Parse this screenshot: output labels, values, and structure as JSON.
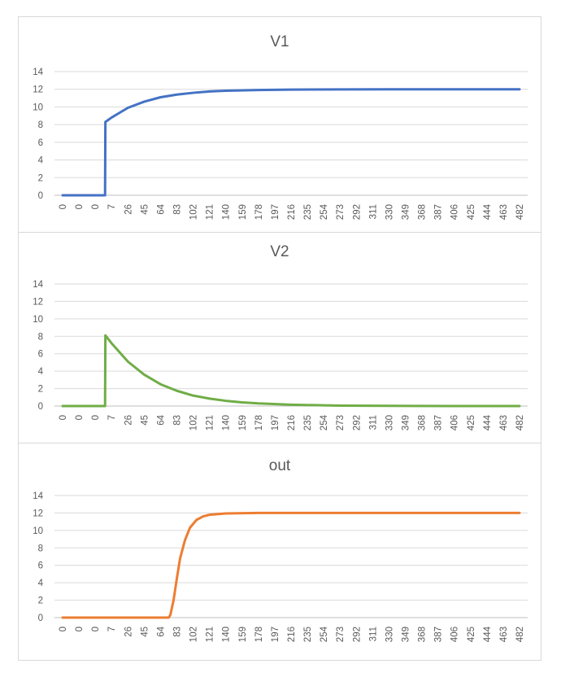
{
  "chart_data": [
    {
      "type": "line",
      "title": "V1",
      "xlabel": "",
      "ylabel": "",
      "ylim": [
        0,
        14
      ],
      "yticks": [
        "0",
        "2",
        "4",
        "6",
        "8",
        "10",
        "12",
        "14"
      ],
      "categories": [
        "0",
        "0",
        "0",
        "7",
        "26",
        "45",
        "64",
        "83",
        "102",
        "121",
        "140",
        "159",
        "178",
        "197",
        "216",
        "235",
        "254",
        "273",
        "292",
        "311",
        "330",
        "349",
        "368",
        "387",
        "406",
        "425",
        "444",
        "463",
        "482"
      ],
      "series": [
        {
          "color": "#4472c4",
          "x": [
            0,
            1,
            2,
            2.6,
            2.62,
            3,
            4,
            5,
            6,
            7,
            8,
            9,
            10,
            12,
            14,
            17,
            20,
            24,
            28
          ],
          "values": [
            0,
            0,
            0,
            0,
            8.3,
            8.8,
            9.9,
            10.6,
            11.1,
            11.4,
            11.6,
            11.75,
            11.83,
            11.92,
            11.96,
            11.99,
            12,
            12,
            12
          ]
        }
      ]
    },
    {
      "type": "line",
      "title": "V2",
      "xlabel": "",
      "ylabel": "",
      "ylim": [
        0,
        14
      ],
      "yticks": [
        "0",
        "2",
        "4",
        "6",
        "8",
        "10",
        "12",
        "14"
      ],
      "categories": [
        "0",
        "0",
        "0",
        "7",
        "26",
        "45",
        "64",
        "83",
        "102",
        "121",
        "140",
        "159",
        "178",
        "197",
        "216",
        "235",
        "254",
        "273",
        "292",
        "311",
        "330",
        "349",
        "368",
        "387",
        "406",
        "425",
        "444",
        "463",
        "482"
      ],
      "series": [
        {
          "color": "#70ad47",
          "x": [
            0,
            1,
            2,
            2.6,
            2.62,
            3,
            4,
            5,
            6,
            7,
            8,
            9,
            10,
            11,
            12,
            14,
            17,
            20,
            24,
            28
          ],
          "values": [
            0,
            0,
            0,
            0,
            8.1,
            7.2,
            5.1,
            3.6,
            2.5,
            1.75,
            1.2,
            0.85,
            0.6,
            0.42,
            0.3,
            0.15,
            0.05,
            0.02,
            0,
            0
          ]
        }
      ]
    },
    {
      "type": "line",
      "title": "out",
      "xlabel": "",
      "ylabel": "",
      "ylim": [
        0,
        14
      ],
      "yticks": [
        "0",
        "2",
        "4",
        "6",
        "8",
        "10",
        "12",
        "14"
      ],
      "categories": [
        "0",
        "0",
        "0",
        "7",
        "26",
        "45",
        "64",
        "83",
        "102",
        "121",
        "140",
        "159",
        "178",
        "197",
        "216",
        "235",
        "254",
        "273",
        "292",
        "311",
        "330",
        "349",
        "368",
        "387",
        "406",
        "425",
        "444",
        "463",
        "482"
      ],
      "series": [
        {
          "color": "#ed7d31",
          "x": [
            0,
            2,
            4,
            6,
            6.5,
            6.6,
            6.8,
            7.0,
            7.2,
            7.5,
            7.8,
            8.2,
            8.6,
            9.0,
            10,
            12,
            16,
            20,
            28
          ],
          "values": [
            0,
            0,
            0,
            0,
            0,
            0.3,
            2.0,
            4.5,
            6.8,
            8.9,
            10.3,
            11.2,
            11.6,
            11.8,
            11.95,
            12,
            12,
            12,
            12
          ]
        }
      ]
    }
  ]
}
